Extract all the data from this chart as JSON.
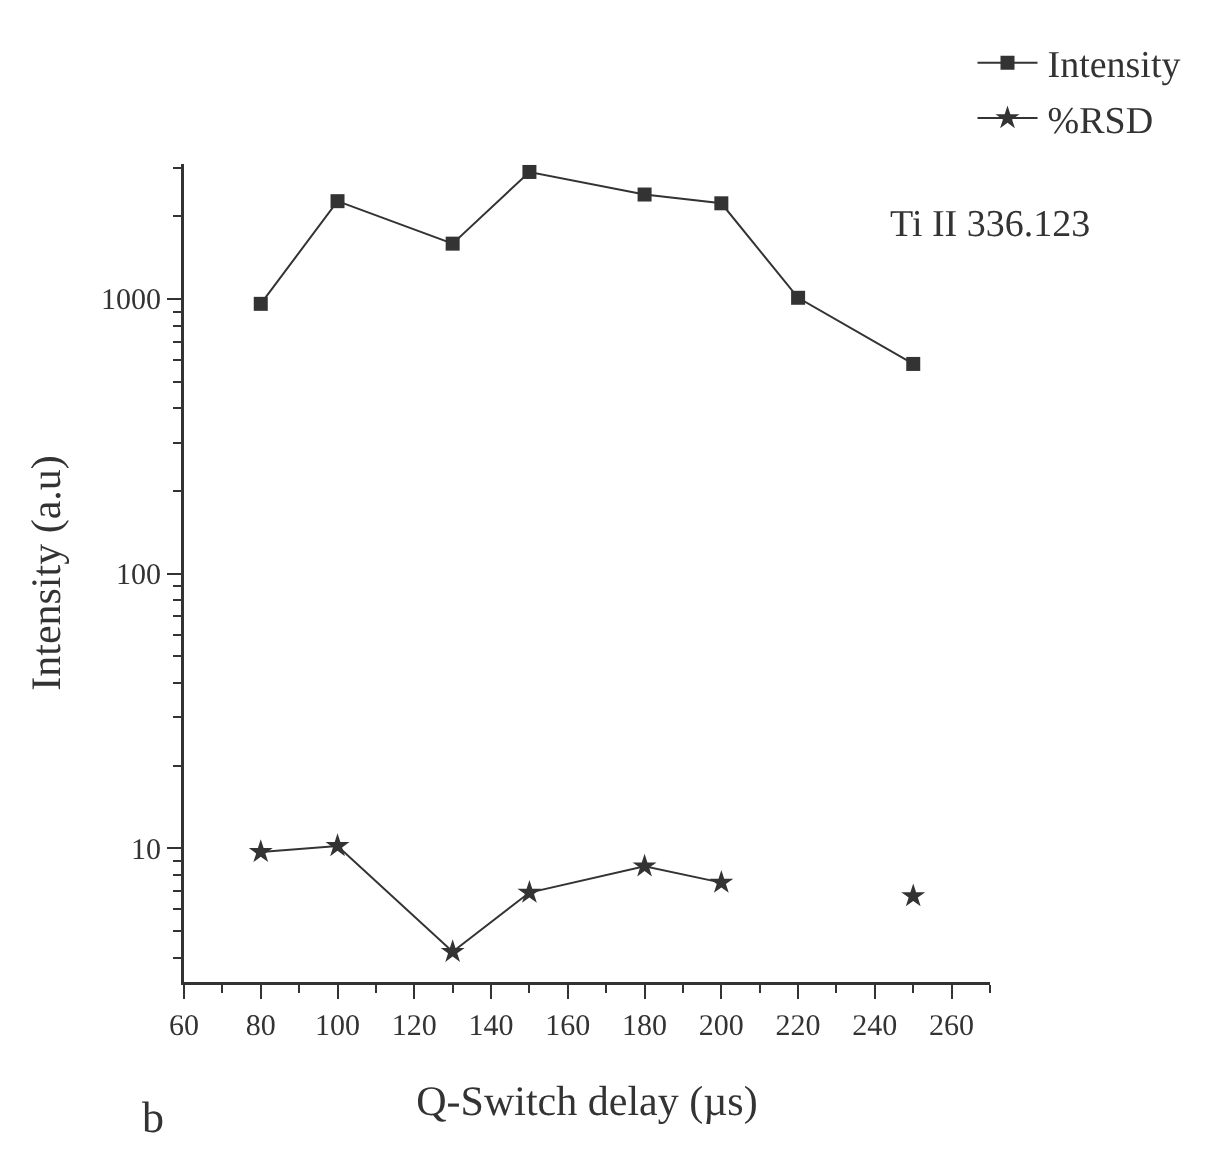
{
  "chart_data": {
    "type": "line",
    "xlabel": "Q-Switch delay (µs)",
    "ylabel": "Intensity (a.u)",
    "x": [
      80,
      100,
      130,
      150,
      180,
      200,
      220,
      250
    ],
    "series": [
      {
        "name": "Intensity",
        "color": "#333333",
        "marker": "square",
        "values": [
          960,
          2270,
          1590,
          2900,
          2400,
          2230,
          1010,
          580
        ]
      },
      {
        "name": "%RSD",
        "color": "#333333",
        "marker": "star",
        "values": [
          9.7,
          10.2,
          4.2,
          6.9,
          8.6,
          7.5,
          null,
          6.7
        ]
      }
    ],
    "xlim": [
      60,
      270
    ],
    "xticks": [
      60,
      80,
      100,
      120,
      140,
      160,
      180,
      200,
      220,
      240,
      260
    ],
    "ylim": [
      3.26,
      3100
    ],
    "yticks": [
      10,
      100,
      1000
    ],
    "log": "y",
    "grid": false,
    "legend": "top right",
    "line_style": "solid",
    "annotations": [
      "Ti II 336.123",
      "b"
    ]
  }
}
